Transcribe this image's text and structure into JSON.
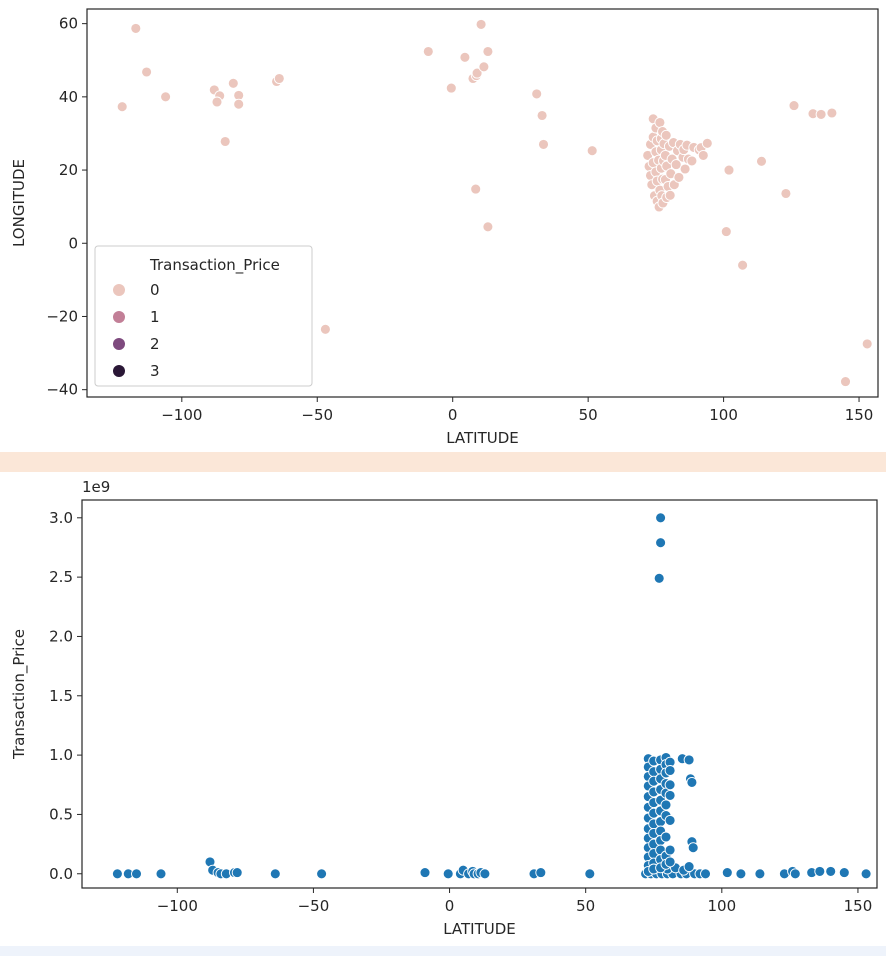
{
  "chart_data": [
    {
      "type": "scatter",
      "title": "",
      "xlabel": "LATITUDE",
      "ylabel": "LONGITUDE",
      "xlim": [
        -135,
        157
      ],
      "ylim": [
        -42,
        64
      ],
      "xticks": [
        -100,
        -50,
        0,
        50,
        100,
        150
      ],
      "yticks": [
        -40,
        -20,
        0,
        20,
        40,
        60
      ],
      "xtick_labels": [
        "−100",
        "−50",
        "0",
        "50",
        "100",
        "150"
      ],
      "ytick_labels": [
        "−40",
        "−20",
        "0",
        "20",
        "40",
        "60"
      ],
      "grid": false,
      "legend": {
        "title": "Transaction_Price",
        "position": "lower-left",
        "entries": [
          {
            "label": "0",
            "color": "#ebc6bd"
          },
          {
            "label": "1",
            "color": "#c27f97"
          },
          {
            "label": "2",
            "color": "#7e4a7e"
          },
          {
            "label": "3",
            "color": "#2a1736"
          }
        ]
      },
      "point_color": "#ebc6bd",
      "points": [
        [
          -117,
          58.7
        ],
        [
          -113,
          46.8
        ],
        [
          -106,
          40
        ],
        [
          -122,
          37.3
        ],
        [
          -88,
          41.9
        ],
        [
          -86,
          40.3
        ],
        [
          -87,
          38.6
        ],
        [
          -81,
          43.7
        ],
        [
          -79,
          40.4
        ],
        [
          -79,
          38
        ],
        [
          -84,
          27.8
        ],
        [
          -65,
          44.2
        ],
        [
          -64,
          45
        ],
        [
          -47,
          -23.5
        ],
        [
          -9,
          52.4
        ],
        [
          -0.5,
          42.4
        ],
        [
          4.5,
          50.8
        ],
        [
          7.5,
          45
        ],
        [
          8.7,
          45.8
        ],
        [
          9,
          46.5
        ],
        [
          10.5,
          59.8
        ],
        [
          11.5,
          48.2
        ],
        [
          13,
          52.4
        ],
        [
          8.5,
          14.8
        ],
        [
          13,
          4.5
        ],
        [
          31,
          40.8
        ],
        [
          33,
          34.9
        ],
        [
          33.5,
          27
        ],
        [
          51.5,
          25.3
        ],
        [
          102,
          20
        ],
        [
          101,
          3.2
        ],
        [
          107,
          -6
        ],
        [
          114,
          22.4
        ],
        [
          123,
          13.6
        ],
        [
          126,
          37.6
        ],
        [
          133,
          35.4
        ],
        [
          136,
          35.2
        ],
        [
          140,
          35.6
        ],
        [
          145,
          -37.8
        ],
        [
          153,
          -27.5
        ],
        [
          72,
          24
        ],
        [
          72.5,
          21
        ],
        [
          73,
          18.5
        ],
        [
          73,
          27
        ],
        [
          73.5,
          16
        ],
        [
          74,
          22
        ],
        [
          74,
          29
        ],
        [
          74,
          34
        ],
        [
          74.5,
          13
        ],
        [
          75,
          25
        ],
        [
          75,
          19.5
        ],
        [
          75,
          31.5
        ],
        [
          75.5,
          11.5
        ],
        [
          75.5,
          17
        ],
        [
          75.5,
          28
        ],
        [
          76,
          22.7
        ],
        [
          76.2,
          9.9
        ],
        [
          76.5,
          33
        ],
        [
          76.5,
          14.5
        ],
        [
          77,
          28.6
        ],
        [
          77,
          20.5
        ],
        [
          77,
          25.5
        ],
        [
          77.2,
          13
        ],
        [
          77.5,
          30.5
        ],
        [
          77.6,
          11
        ],
        [
          77.5,
          17.5
        ],
        [
          77.8,
          22.5
        ],
        [
          78,
          27.2
        ],
        [
          78.5,
          17.4
        ],
        [
          78.5,
          24
        ],
        [
          78.8,
          29.5
        ],
        [
          79,
          21.1
        ],
        [
          79,
          12.5
        ],
        [
          79.5,
          15.5
        ],
        [
          80,
          26.5
        ],
        [
          80.3,
          13.1
        ],
        [
          80.5,
          19
        ],
        [
          81,
          23
        ],
        [
          81.5,
          27.5
        ],
        [
          81.8,
          16
        ],
        [
          82.5,
          21.5
        ],
        [
          83,
          25.3
        ],
        [
          83.5,
          18
        ],
        [
          84,
          27
        ],
        [
          85,
          23.5
        ],
        [
          85.3,
          25.6
        ],
        [
          85.8,
          20.3
        ],
        [
          86.5,
          26.8
        ],
        [
          87,
          23
        ],
        [
          88.3,
          22.5
        ],
        [
          89,
          26.2
        ],
        [
          91,
          25.5
        ],
        [
          91.7,
          26.1
        ],
        [
          92.5,
          24
        ],
        [
          94,
          27.3
        ]
      ]
    },
    {
      "type": "scatter",
      "title": "",
      "xlabel": "LATITUDE",
      "ylabel": "Transaction_Price",
      "exponent_label": "1e9",
      "xlim": [
        -135,
        157
      ],
      "ylim": [
        -0.12,
        3.15
      ],
      "xticks": [
        -100,
        -50,
        0,
        50,
        100,
        150
      ],
      "yticks": [
        0.0,
        0.5,
        1.0,
        1.5,
        2.0,
        2.5,
        3.0
      ],
      "xtick_labels": [
        "−100",
        "−50",
        "0",
        "50",
        "100",
        "150"
      ],
      "ytick_labels": [
        "0.0",
        "0.5",
        "1.0",
        "1.5",
        "2.0",
        "2.5",
        "3.0"
      ],
      "grid": false,
      "point_color": "#1f77b4",
      "points": [
        [
          -122,
          0.0
        ],
        [
          -118,
          0.0
        ],
        [
          -115,
          0.0
        ],
        [
          -106,
          0.0
        ],
        [
          -88,
          0.1
        ],
        [
          -87,
          0.03
        ],
        [
          -85,
          0.01
        ],
        [
          -84,
          0.0
        ],
        [
          -82,
          0.0
        ],
        [
          -79,
          0.01
        ],
        [
          -78,
          0.01
        ],
        [
          -64,
          0.0
        ],
        [
          -47,
          0.0
        ],
        [
          -9,
          0.01
        ],
        [
          -0.5,
          0.0
        ],
        [
          4,
          0.0
        ],
        [
          5,
          0.03
        ],
        [
          7,
          0.0
        ],
        [
          8.5,
          0.02
        ],
        [
          9,
          0.0
        ],
        [
          10.5,
          0.0
        ],
        [
          11.5,
          0.01
        ],
        [
          13,
          0.0
        ],
        [
          31,
          0.0
        ],
        [
          33.5,
          0.01
        ],
        [
          51.5,
          0.0
        ],
        [
          102,
          0.01
        ],
        [
          107,
          0.0
        ],
        [
          114,
          0.0
        ],
        [
          123,
          0.0
        ],
        [
          126,
          0.02
        ],
        [
          127,
          0.0
        ],
        [
          133,
          0.01
        ],
        [
          136,
          0.02
        ],
        [
          140,
          0.02
        ],
        [
          145,
          0.01
        ],
        [
          153,
          0.0
        ],
        [
          77.5,
          3.0
        ],
        [
          77.5,
          2.79
        ],
        [
          77,
          2.49
        ],
        [
          85.5,
          0.97
        ],
        [
          88,
          0.96
        ],
        [
          88.5,
          0.8
        ],
        [
          89,
          0.77
        ],
        [
          89,
          0.27
        ],
        [
          89.5,
          0.22
        ],
        [
          72,
          0.0
        ],
        [
          74,
          0.0
        ],
        [
          76,
          0.0
        ],
        [
          78,
          0.0
        ],
        [
          80,
          0.0
        ],
        [
          82,
          0.0
        ],
        [
          85,
          0.0
        ],
        [
          87,
          0.0
        ],
        [
          90,
          0.0
        ],
        [
          92,
          0.0
        ],
        [
          94,
          0.0
        ],
        [
          80,
          0.04
        ],
        [
          83,
          0.05
        ],
        [
          86,
          0.03
        ],
        [
          88,
          0.06
        ],
        [
          73,
          0.97
        ],
        [
          73,
          0.9
        ],
        [
          73,
          0.82
        ],
        [
          73,
          0.74
        ],
        [
          73,
          0.65
        ],
        [
          73,
          0.56
        ],
        [
          73,
          0.47
        ],
        [
          73,
          0.38
        ],
        [
          73,
          0.3
        ],
        [
          73,
          0.22
        ],
        [
          73,
          0.14
        ],
        [
          73,
          0.07
        ],
        [
          73,
          0.02
        ],
        [
          75,
          0.95
        ],
        [
          75,
          0.86
        ],
        [
          75,
          0.78
        ],
        [
          75,
          0.69
        ],
        [
          75,
          0.6
        ],
        [
          75,
          0.51
        ],
        [
          75,
          0.42
        ],
        [
          75,
          0.34
        ],
        [
          75,
          0.25
        ],
        [
          75,
          0.17
        ],
        [
          75,
          0.09
        ],
        [
          75,
          0.04
        ],
        [
          77.5,
          0.96
        ],
        [
          77.5,
          0.88
        ],
        [
          77.5,
          0.8
        ],
        [
          77.5,
          0.71
        ],
        [
          77.5,
          0.62
        ],
        [
          77.5,
          0.53
        ],
        [
          77.5,
          0.44
        ],
        [
          77.5,
          0.36
        ],
        [
          77.5,
          0.28
        ],
        [
          77.5,
          0.2
        ],
        [
          77.5,
          0.12
        ],
        [
          77.5,
          0.05
        ],
        [
          79.5,
          0.98
        ],
        [
          79.5,
          0.92
        ],
        [
          79.5,
          0.85
        ],
        [
          79.5,
          0.76
        ],
        [
          79.5,
          0.68
        ],
        [
          79.5,
          0.58
        ],
        [
          79.5,
          0.49
        ],
        [
          79.5,
          0.31
        ],
        [
          79.5,
          0.15
        ],
        [
          79.5,
          0.08
        ],
        [
          81,
          0.94
        ],
        [
          81,
          0.87
        ],
        [
          81,
          0.75
        ],
        [
          81,
          0.66
        ],
        [
          81,
          0.45
        ],
        [
          81,
          0.2
        ],
        [
          81,
          0.1
        ]
      ]
    }
  ]
}
